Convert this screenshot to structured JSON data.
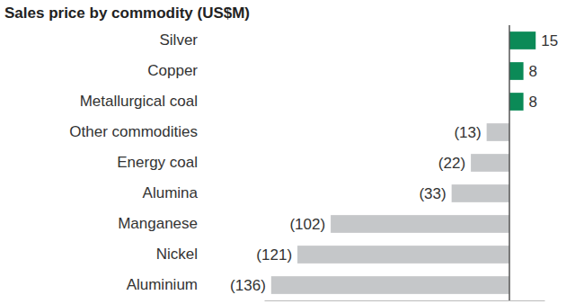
{
  "chart_data": {
    "type": "bar",
    "orientation": "horizontal",
    "title": "Sales price by commodity (US$M)",
    "categories": [
      "Silver",
      "Copper",
      "Metallurgical coal",
      "Other commodities",
      "Energy coal",
      "Alumina",
      "Manganese",
      "Nickel",
      "Aluminium"
    ],
    "values": [
      15,
      8,
      8,
      -13,
      -22,
      -33,
      -102,
      -121,
      -136
    ],
    "value_labels": [
      "15",
      "8",
      "8",
      "(13)",
      "(22)",
      "(33)",
      "(102)",
      "(121)",
      "(136)"
    ],
    "colors": [
      "#0b8a57",
      "#0b8a57",
      "#0b8a57",
      "#c5c7c9",
      "#c5c7c9",
      "#c5c7c9",
      "#c5c7c9",
      "#c5c7c9",
      "#c5c7c9"
    ],
    "xlim": [
      -140,
      20
    ],
    "data_labels": true,
    "tick_labels": "y",
    "grid": false
  }
}
